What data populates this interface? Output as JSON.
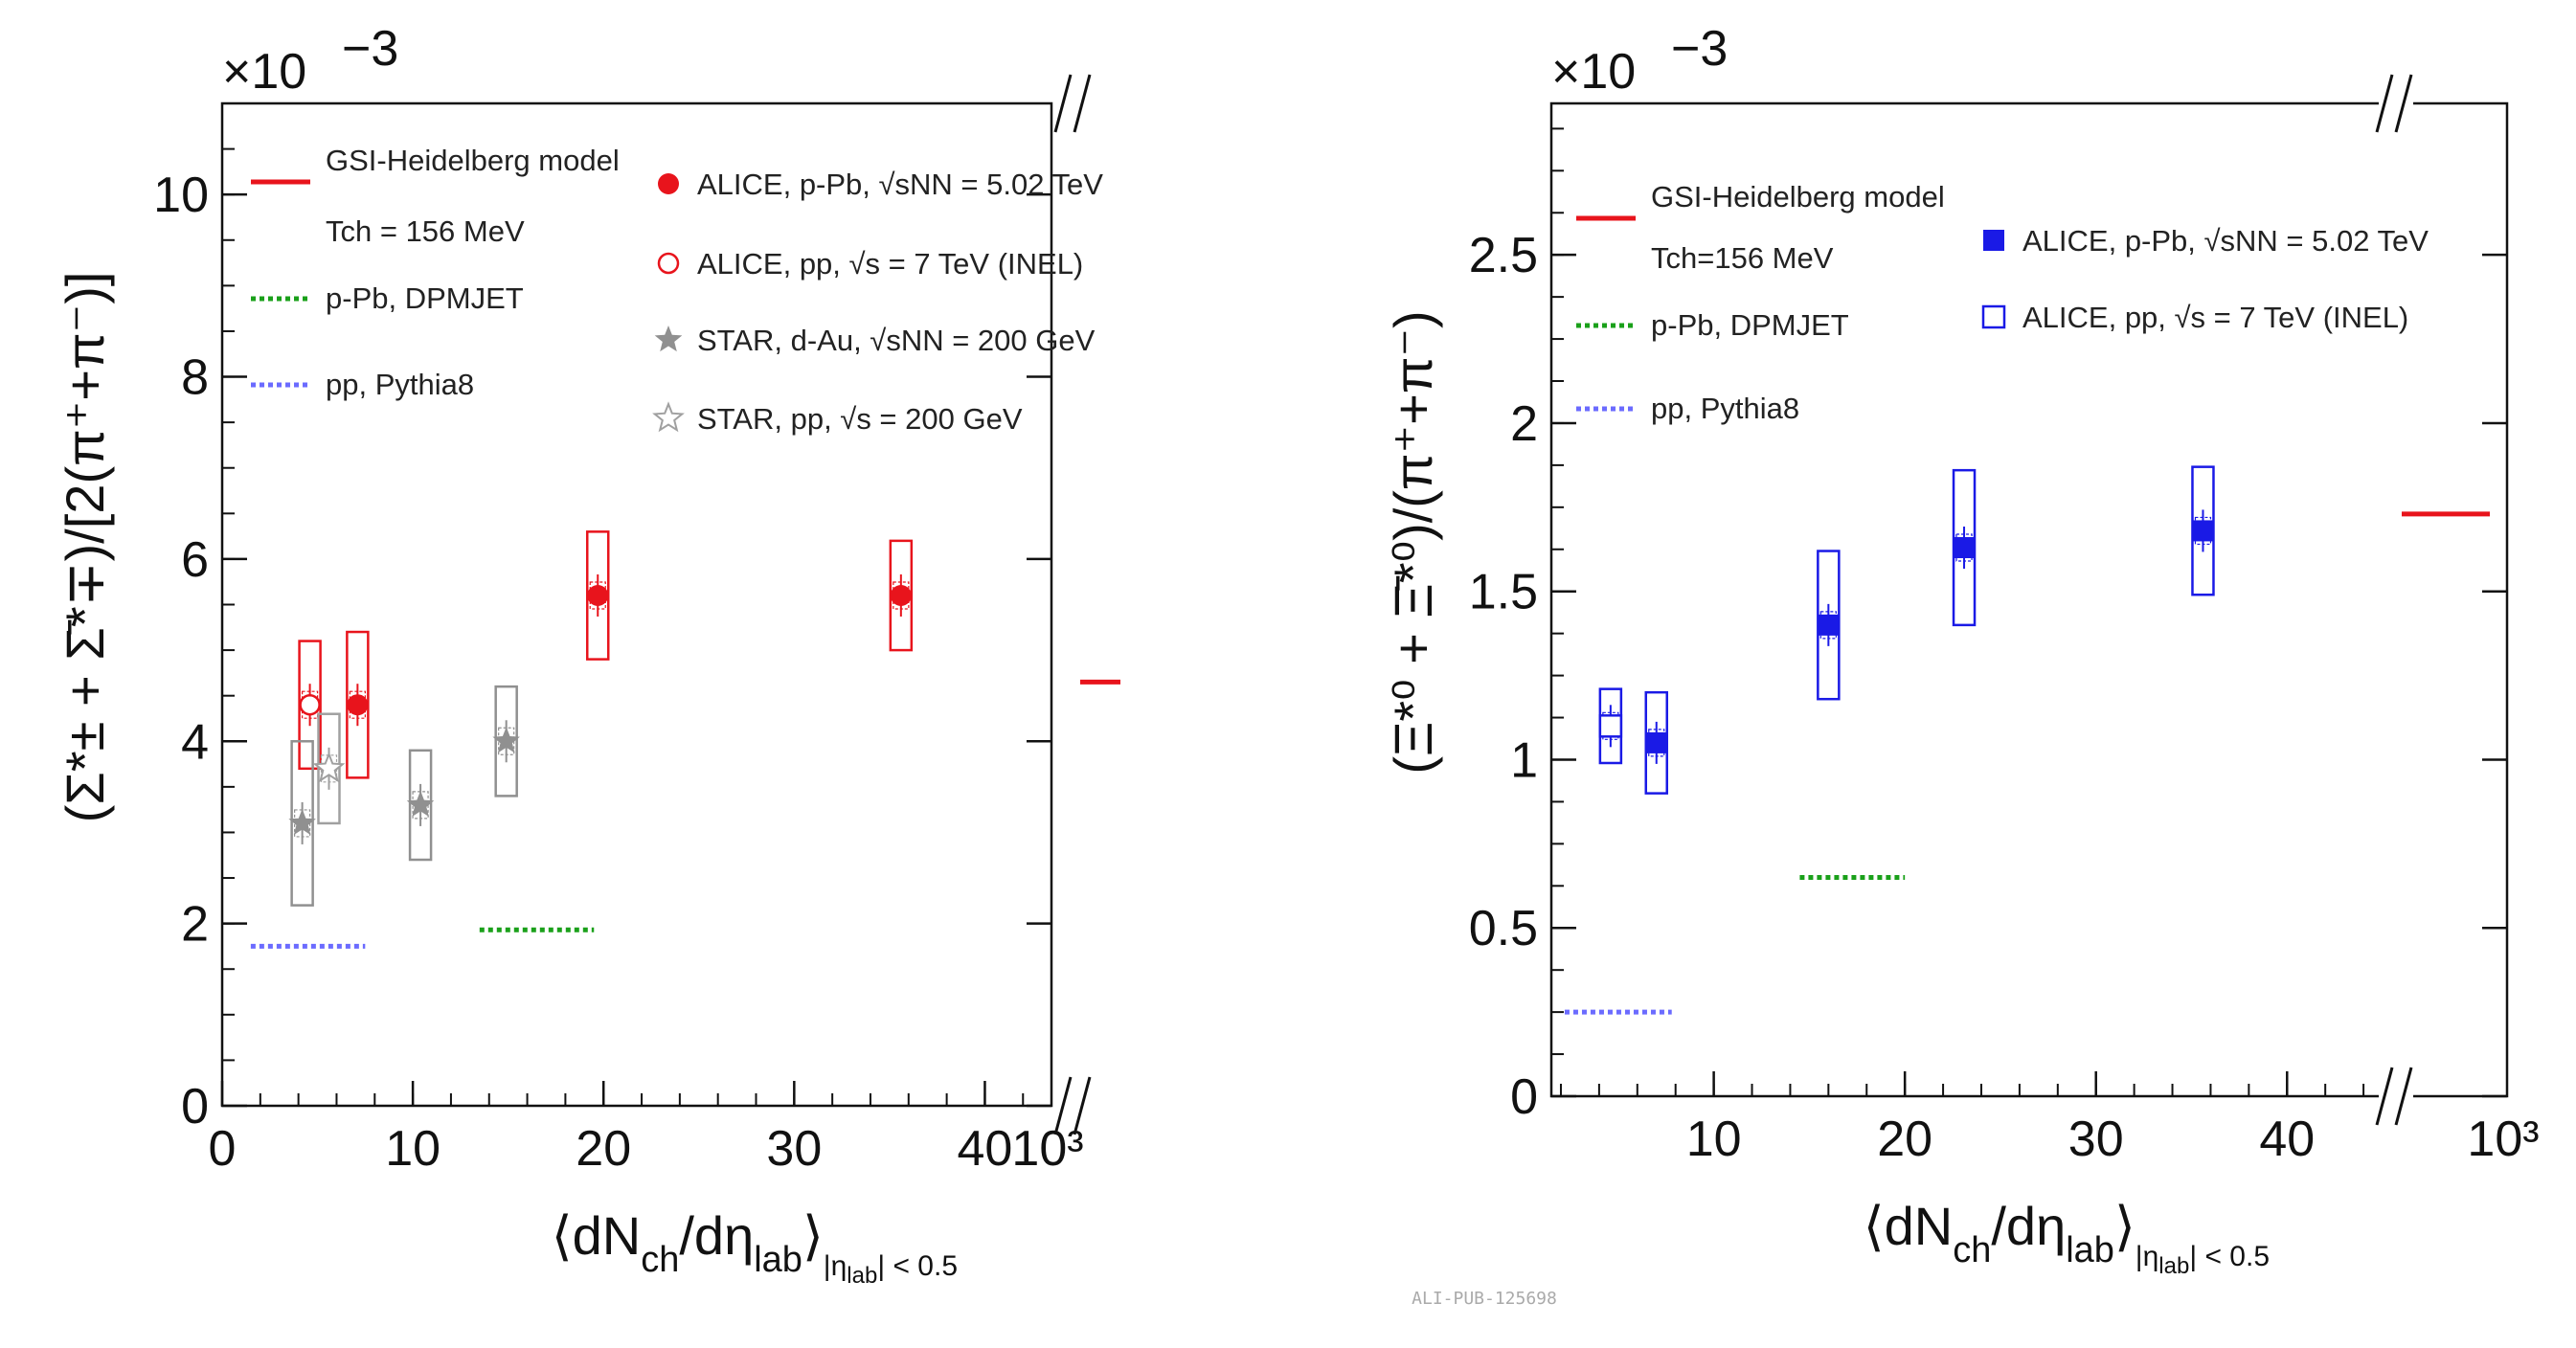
{
  "watermark": "ALI-PUB-125698",
  "chart_data": [
    {
      "type": "scatter",
      "id": "left",
      "scale_label": "×10",
      "scale_exponent": "−3",
      "ylabel_main": "(Σ*± + Σ̄*∓)/[2(π⁺+π⁻)]",
      "ylabel": "(Σ*± + Σ̄*∓)/[2(π⁺+π⁻)]",
      "xlabel": "⟨dNch/dηlab⟩|ηlab| < 0.5",
      "xlabel_main": "⟨dN",
      "xlabel_sub1": "ch",
      "xlabel_mid": "/dη",
      "xlabel_sub2": "lab",
      "xlabel_close": "⟩",
      "xlabel_cond": "|η",
      "xlabel_cond_sub": "lab",
      "xlabel_cond_end": "| < 0.5",
      "xlim": [
        0,
        45
      ],
      "ylim": [
        0,
        11
      ],
      "x_ticks": [
        {
          "v": 0,
          "t": "0"
        },
        {
          "v": 10,
          "t": "10"
        },
        {
          "v": 20,
          "t": "20"
        },
        {
          "v": 30,
          "t": "30"
        },
        {
          "v": 40,
          "t": "40"
        }
      ],
      "x_break_label": "10³",
      "y_ticks": [
        {
          "v": 0,
          "t": "0"
        },
        {
          "v": 2,
          "t": "2"
        },
        {
          "v": 4,
          "t": "4"
        },
        {
          "v": 6,
          "t": "6"
        },
        {
          "v": 8,
          "t": "8"
        },
        {
          "v": 10,
          "t": "10"
        }
      ],
      "series": [
        {
          "name": "ALICE, p-Pb, √sNN = 5.02 TeV",
          "color": "#e8141c",
          "marker": "circle-filled",
          "points": [
            {
              "x": 7.1,
              "y": 4.4,
              "syst": [
                3.6,
                5.2
              ]
            },
            {
              "x": 19.7,
              "y": 5.6,
              "syst": [
                4.9,
                6.3
              ]
            },
            {
              "x": 35.6,
              "y": 5.6,
              "syst": [
                5.0,
                6.2
              ]
            }
          ]
        },
        {
          "name": "ALICE, pp, √s = 7 TeV (INEL)",
          "color": "#e8141c",
          "marker": "circle-open",
          "points": [
            {
              "x": 4.6,
              "y": 4.4,
              "syst": [
                3.7,
                5.1
              ]
            }
          ]
        },
        {
          "name": "STAR, d-Au, √sNN = 200 GeV",
          "color": "#909090",
          "marker": "star-filled",
          "points": [
            {
              "x": 4.2,
              "y": 3.1,
              "syst": [
                2.2,
                4.0
              ]
            },
            {
              "x": 10.4,
              "y": 3.3,
              "syst": [
                2.7,
                3.9
              ]
            },
            {
              "x": 14.9,
              "y": 4.0,
              "syst": [
                3.4,
                4.6
              ]
            }
          ]
        },
        {
          "name": "STAR, pp, √s = 200 GeV",
          "color": "#a0a0a0",
          "marker": "star-open",
          "points": [
            {
              "x": 5.6,
              "y": 3.7,
              "syst": [
                3.1,
                4.3
              ]
            }
          ]
        }
      ],
      "bands": [
        {
          "name": "GSI-Heidelberg model",
          "line2": "Tch = 156 MeV",
          "color": "#e8141c",
          "style": "solid",
          "x": [
            44.5,
            47
          ],
          "y": 4.65,
          "at_break": true
        },
        {
          "name": "p-Pb, DPMJET",
          "color": "#1aa01a",
          "style": "dotted",
          "x": [
            13.5,
            19.5
          ],
          "y": 1.93
        },
        {
          "name": "pp, Pythia8",
          "color": "#6b6bff",
          "style": "dotted",
          "x": [
            1.5,
            7.5
          ],
          "y": 1.75
        }
      ],
      "legend": {
        "model_col": [
          {
            "label": "GSI-Heidelberg model",
            "line2": "Tch = 156 MeV"
          },
          {
            "label": "p-Pb, DPMJET"
          },
          {
            "label": "pp, Pythia8"
          }
        ],
        "data_col": [
          {
            "label": "ALICE, p-Pb, √sNN = 5.02 TeV"
          },
          {
            "label": "ALICE, pp, √s = 7 TeV (INEL)"
          },
          {
            "label": "STAR, d-Au, √sNN = 200 GeV"
          },
          {
            "label": "STAR, pp, √s = 200 GeV"
          }
        ]
      }
    },
    {
      "type": "scatter",
      "id": "right",
      "scale_label": "×10",
      "scale_exponent": "−3",
      "ylabel_main": "(Ξ*⁰ + Ξ̄*⁰)/(π⁺+π⁻)",
      "ylabel": "(Ξ*⁰ + Ξ̄*⁰)/(π⁺+π⁻)",
      "xlabel": "⟨dNch/dηlab⟩|ηlab| < 0.5",
      "xlabel_main": "⟨dN",
      "xlabel_sub1": "ch",
      "xlabel_mid": "/dη",
      "xlabel_sub2": "lab",
      "xlabel_close": "⟩",
      "xlabel_cond": "|η",
      "xlabel_cond_sub": "lab",
      "xlabel_cond_end": "| < 0.5",
      "xlim": [
        1.5,
        46
      ],
      "ylim": [
        0,
        2.95
      ],
      "x_ticks": [
        {
          "v": 10,
          "t": "10"
        },
        {
          "v": 20,
          "t": "20"
        },
        {
          "v": 30,
          "t": "30"
        },
        {
          "v": 40,
          "t": "40"
        }
      ],
      "x_break_label": "10³",
      "y_ticks": [
        {
          "v": 0,
          "t": "0"
        },
        {
          "v": 0.5,
          "t": "0.5"
        },
        {
          "v": 1,
          "t": "1"
        },
        {
          "v": 1.5,
          "t": "1.5"
        },
        {
          "v": 2,
          "t": "2"
        },
        {
          "v": 2.5,
          "t": "2.5"
        }
      ],
      "series": [
        {
          "name": "ALICE, p-Pb, √sNN = 5.02 TeV",
          "color": "#1a1ae6",
          "marker": "square-filled",
          "points": [
            {
              "x": 7.0,
              "y": 1.05,
              "syst": [
                0.9,
                1.2
              ]
            },
            {
              "x": 16.0,
              "y": 1.4,
              "syst": [
                1.18,
                1.62
              ]
            },
            {
              "x": 23.1,
              "y": 1.63,
              "syst": [
                1.4,
                1.86
              ]
            },
            {
              "x": 35.6,
              "y": 1.68,
              "syst": [
                1.49,
                1.87
              ]
            }
          ]
        },
        {
          "name": "ALICE, pp, √s = 7 TeV (INEL)",
          "color": "#1a1ae6",
          "marker": "square-open",
          "points": [
            {
              "x": 4.6,
              "y": 1.1,
              "syst": [
                0.99,
                1.21
              ]
            }
          ]
        }
      ],
      "bands": [
        {
          "name": "GSI-Heidelberg model",
          "line2": "Tch=156 MeV",
          "color": "#e8141c",
          "style": "solid",
          "x": [
            44.5,
            47
          ],
          "y": 1.73,
          "at_break": true
        },
        {
          "name": "p-Pb, DPMJET",
          "color": "#1aa01a",
          "style": "dotted",
          "x": [
            14.5,
            20
          ],
          "y": 0.65
        },
        {
          "name": "pp, Pythia8",
          "color": "#6b6bff",
          "style": "dotted",
          "x": [
            2.2,
            7.8
          ],
          "y": 0.25
        }
      ],
      "legend": {
        "model_col": [
          {
            "label": "GSI-Heidelberg model",
            "line2": "Tch=156 MeV"
          },
          {
            "label": "p-Pb, DPMJET"
          },
          {
            "label": "pp, Pythia8"
          }
        ],
        "data_col": [
          {
            "label": "ALICE, p-Pb, √sNN = 5.02 TeV"
          },
          {
            "label": "ALICE, pp, √s = 7 TeV (INEL)"
          }
        ]
      }
    }
  ]
}
